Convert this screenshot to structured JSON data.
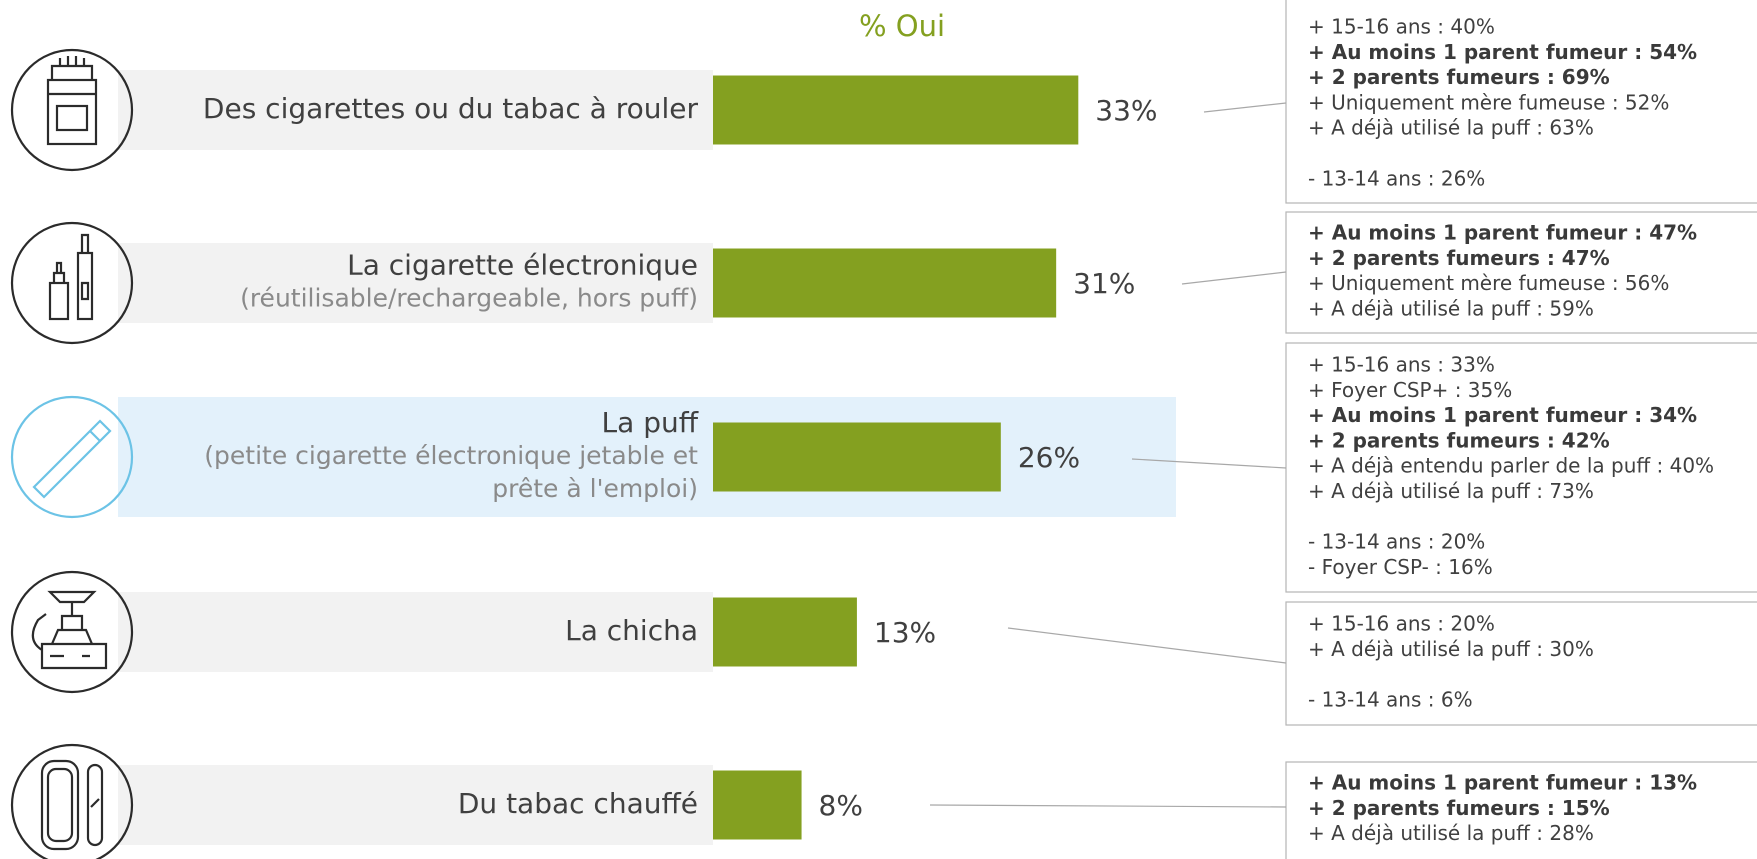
{
  "chart_data": {
    "type": "bar",
    "title": "% Oui",
    "color": "#84a020",
    "highlight": 2,
    "categories": [
      "Des cigarettes ou du tabac à rouler",
      "La cigarette électronique",
      "La puff",
      "La chicha",
      "Du tabac chauffé"
    ],
    "sublabels": [
      null,
      [
        "(réutilisable/rechargeable, hors puff)"
      ],
      [
        "(petite cigarette électronique jetable et",
        "prête à l'emploi)"
      ],
      null,
      null
    ],
    "values": [
      33,
      31,
      26,
      13,
      8
    ],
    "value_labels": [
      "33%",
      "31%",
      "26%",
      "13%",
      "8%"
    ]
  },
  "details": [
    {
      "groups": [
        [
          {
            "text": "+ 15-16 ans : 40%",
            "bold": false
          },
          {
            "text": "+ Au moins 1 parent fumeur : 54%",
            "bold": true
          },
          {
            "text": "+ 2 parents fumeurs : 69%",
            "bold": true
          },
          {
            "text": "+ Uniquement mère fumeuse : 52%",
            "bold": false
          },
          {
            "text": "+ A déjà utilisé la puff : 63%",
            "bold": false
          }
        ],
        [
          {
            "text": "- 13-14 ans : 26%",
            "bold": false
          }
        ]
      ]
    },
    {
      "groups": [
        [
          {
            "text": "+ Au moins 1 parent fumeur : 47%",
            "bold": true
          },
          {
            "text": "+ 2 parents fumeurs : 47%",
            "bold": true
          },
          {
            "text": "+ Uniquement mère fumeuse : 56%",
            "bold": false
          },
          {
            "text": "+ A déjà utilisé la puff : 59%",
            "bold": false
          }
        ]
      ]
    },
    {
      "groups": [
        [
          {
            "text": "+ 15-16 ans : 33%",
            "bold": false
          },
          {
            "text": "+ Foyer CSP+ : 35%",
            "bold": false
          },
          {
            "text": "+ Au moins 1 parent fumeur : 34%",
            "bold": true
          },
          {
            "text": "+ 2 parents fumeurs : 42%",
            "bold": true
          },
          {
            "text": "+ A déjà entendu parler de la puff : 40%",
            "bold": false
          },
          {
            "text": "+ A déjà utilisé la puff : 73%",
            "bold": false
          }
        ],
        [
          {
            "text": "- 13-14 ans : 20%",
            "bold": false
          },
          {
            "text": "- Foyer CSP- : 16%",
            "bold": false
          }
        ]
      ]
    },
    {
      "groups": [
        [
          {
            "text": "+ 15-16 ans : 20%",
            "bold": false
          },
          {
            "text": "+ A déjà utilisé la puff : 30%",
            "bold": false
          }
        ],
        [
          {
            "text": "- 13-14 ans : 6%",
            "bold": false
          }
        ]
      ]
    },
    {
      "groups": [
        [
          {
            "text": "+ Au moins 1 parent fumeur : 13%",
            "bold": true
          },
          {
            "text": "+ 2 parents fumeurs : 15%",
            "bold": true
          },
          {
            "text": "+ A déjà utilisé la puff : 28%",
            "bold": false
          }
        ]
      ]
    }
  ]
}
